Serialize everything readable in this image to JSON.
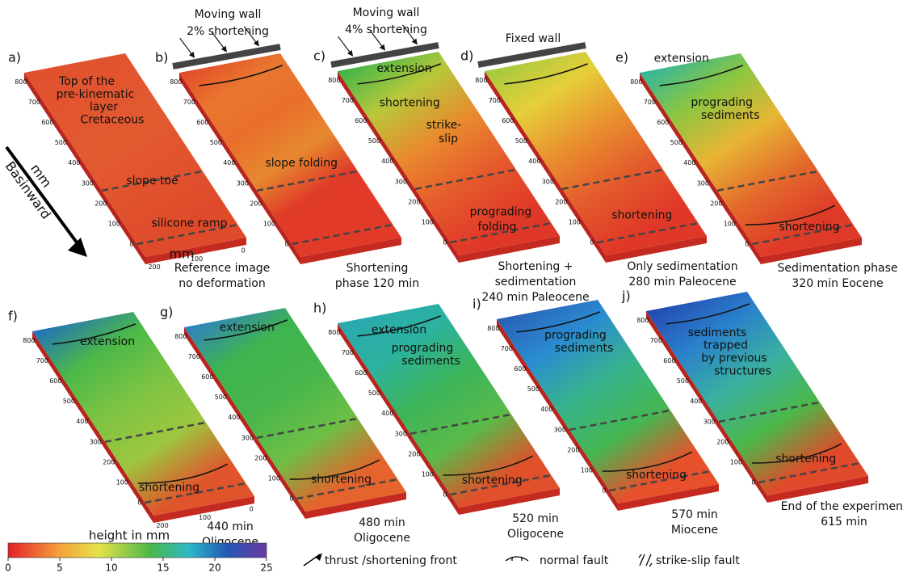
{
  "panels": [
    {
      "label": "a)",
      "annotations": [
        "Top of the",
        "pre-kinematic",
        "layer",
        "Cretaceous",
        "slope toe",
        "silicone ramp"
      ],
      "caption": [
        "Reference image",
        "no deformation"
      ]
    },
    {
      "label": "b)",
      "wall": [
        "Moving wall",
        "2% shortening"
      ],
      "annotations": [
        "slope folding"
      ],
      "caption": [
        "Shortening",
        "phase 120 min"
      ]
    },
    {
      "label": "c)",
      "wall": [
        "Moving wall",
        "4% shortening"
      ],
      "annotations": [
        "extension",
        "shortening",
        "strike-",
        "slip",
        "prograding",
        "folding"
      ],
      "caption": [
        "Shortening +",
        "sedimentation",
        "240 min Paleocene"
      ]
    },
    {
      "label": "d)",
      "wall": [
        "Fixed wall"
      ],
      "annotations": [
        "shortening"
      ],
      "caption": [
        "Only sedimentation",
        "280 min Paleocene"
      ]
    },
    {
      "label": "e)",
      "annotations": [
        "extension",
        "prograding",
        "sediments",
        "shortening"
      ],
      "caption": [
        "Sedimentation phase",
        "320 min Eocene"
      ]
    },
    {
      "label": "f)",
      "annotations": [
        "extension",
        "shortening"
      ],
      "caption": [
        "440 min",
        "Oligocene"
      ]
    },
    {
      "label": "g)",
      "annotations": [
        "extension",
        "shortening"
      ],
      "caption": [
        "480 min",
        "Oligocene"
      ]
    },
    {
      "label": "h)",
      "annotations": [
        "extension",
        "prograding",
        "sediments",
        "shortening"
      ],
      "caption": [
        "520 min",
        "Oligocene"
      ]
    },
    {
      "label": "i)",
      "annotations": [
        "prograding",
        "sediments",
        "shortening"
      ],
      "caption": [
        "570 min",
        "Miocene"
      ]
    },
    {
      "label": "j)",
      "annotations": [
        "sediments",
        "trapped",
        "by previous",
        "structures",
        "shortening"
      ],
      "caption": [
        "End of the experiment",
        "615 min"
      ]
    }
  ],
  "y_ticks": [
    "800",
    "700",
    "600",
    "500",
    "400",
    "300",
    "200",
    "100",
    "0"
  ],
  "x_ticks": [
    "200",
    "100",
    "0"
  ],
  "x_unit": "mm",
  "direction": [
    "mm",
    "Basinward"
  ],
  "colorbar": {
    "title": "height in mm",
    "range": [
      0,
      25
    ],
    "ticks": [
      0,
      5,
      10,
      15,
      20,
      25
    ]
  },
  "legend": [
    "thrust /shortening front",
    "normal fault",
    "strike-slip fault"
  ]
}
